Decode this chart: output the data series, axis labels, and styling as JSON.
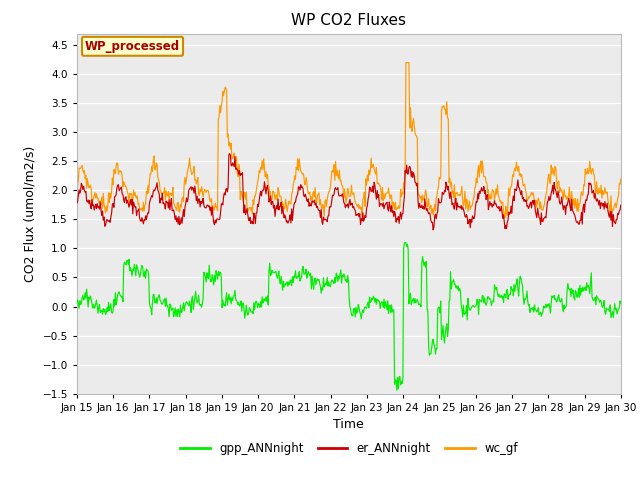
{
  "title": "WP CO2 Fluxes",
  "xlabel": "Time",
  "ylabel": "CO2 Flux (umol/m2/s)",
  "ylim": [
    -1.5,
    4.7
  ],
  "yticks": [
    -1.5,
    -1.0,
    -0.5,
    0.0,
    0.5,
    1.0,
    1.5,
    2.0,
    2.5,
    3.0,
    3.5,
    4.0,
    4.5
  ],
  "xtick_labels": [
    "Jan 15",
    "Jan 16",
    "Jan 17",
    "Jan 18",
    "Jan 19",
    "Jan 20",
    "Jan 21",
    "Jan 22",
    "Jan 23",
    "Jan 24",
    "Jan 25",
    "Jan 26",
    "Jan 27",
    "Jan 28",
    "Jan 29",
    "Jan 30"
  ],
  "color_gpp": "#00ee00",
  "color_er": "#cc0000",
  "color_wc": "#ff9900",
  "legend_label1": "gpp_ANNnight",
  "legend_label2": "er_ANNnight",
  "legend_label3": "wc_gf",
  "annotation_text": "WP_processed",
  "annotation_color": "#aa0000",
  "annotation_bg": "#ffffcc",
  "annotation_border": "#cc8800",
  "plot_bg": "#ebebeb",
  "fig_bg": "#ffffff",
  "title_fontsize": 11,
  "axis_label_fontsize": 9,
  "tick_fontsize": 7.5
}
